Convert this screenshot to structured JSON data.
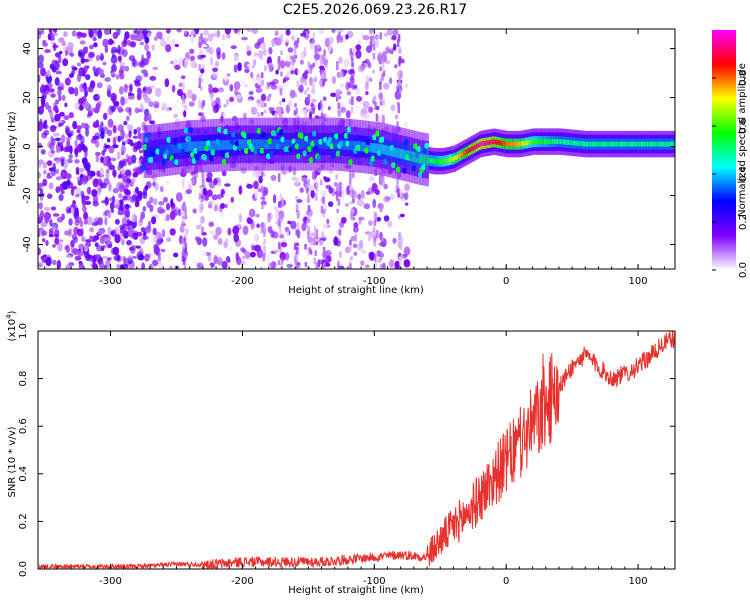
{
  "title": "C2E5.2026.069.23.26.R17",
  "chart_data": [
    {
      "type": "heatmap",
      "xlabel": "Height of straight line (km)",
      "ylabel": "Frequency (Hz)",
      "xlim": [
        -355,
        128
      ],
      "ylim": [
        -50,
        48
      ],
      "xticks": [
        -300,
        -200,
        -100,
        0,
        100
      ],
      "yticks": [
        -40,
        -20,
        0,
        20,
        40
      ],
      "colorbar": {
        "label": "Normalized spectral amplitude",
        "range": [
          0,
          1
        ],
        "ticks": [
          "0.0",
          "0.2",
          "0.4",
          "0.6",
          "0.8"
        ],
        "colormap": [
          "#ffffff",
          "#8000ff",
          "#0000ff",
          "#00ffff",
          "#00ff00",
          "#ffff00",
          "#ff0000",
          "#ff00ff"
        ]
      },
      "ridge": {
        "x": [
          -270,
          -240,
          -200,
          -160,
          -130,
          -110,
          -95,
          -80,
          -65,
          -55,
          -48,
          -40,
          -30,
          -20,
          -10,
          0,
          10,
          20,
          40,
          60,
          80,
          100,
          125
        ],
        "y": [
          -2,
          0,
          1,
          1,
          1,
          0,
          -1,
          -3,
          -5,
          -6,
          -6,
          -5,
          -2,
          1,
          2,
          1,
          1,
          2,
          2,
          1,
          1,
          1,
          1
        ],
        "amplitude": [
          0.3,
          0.4,
          0.4,
          0.35,
          0.35,
          0.4,
          0.45,
          0.45,
          0.5,
          0.55,
          0.6,
          0.7,
          0.85,
          0.95,
          0.9,
          0.8,
          0.75,
          0.6,
          0.5,
          0.5,
          0.5,
          0.5,
          0.5
        ]
      }
    },
    {
      "type": "line",
      "xlabel": "Height of straight line (km)",
      "ylabel": "SNR (10 * v/v)",
      "ylabel_scale": "(x10",
      "ylabel_scale_exp": "4",
      "xlim": [
        -355,
        128
      ],
      "ylim": [
        0,
        1.0
      ],
      "xticks": [
        -300,
        -200,
        -100,
        0,
        100
      ],
      "yticks": [
        0.0,
        0.2,
        0.4,
        0.6,
        0.8,
        1.0
      ],
      "ytick_labels": [
        "0.0",
        "0.2",
        "0.4",
        "0.6",
        "0.8",
        "1.0"
      ],
      "color": "#e8302c",
      "series": [
        {
          "x": [
            -355,
            -320,
            -280,
            -250,
            -220,
            -200,
            -180,
            -160,
            -140,
            -120,
            -100,
            -80,
            -60,
            -50,
            -40,
            -30,
            -20,
            -10,
            0,
            10,
            20,
            30,
            40,
            50,
            60,
            70,
            80,
            90,
            100,
            110,
            120,
            128
          ],
          "y": [
            0.01,
            0.01,
            0.01,
            0.02,
            0.02,
            0.03,
            0.03,
            0.03,
            0.03,
            0.04,
            0.05,
            0.06,
            0.05,
            0.12,
            0.18,
            0.23,
            0.3,
            0.38,
            0.45,
            0.52,
            0.6,
            0.68,
            0.76,
            0.85,
            0.9,
            0.85,
            0.8,
            0.82,
            0.85,
            0.9,
            0.95,
            0.97
          ]
        }
      ]
    }
  ]
}
